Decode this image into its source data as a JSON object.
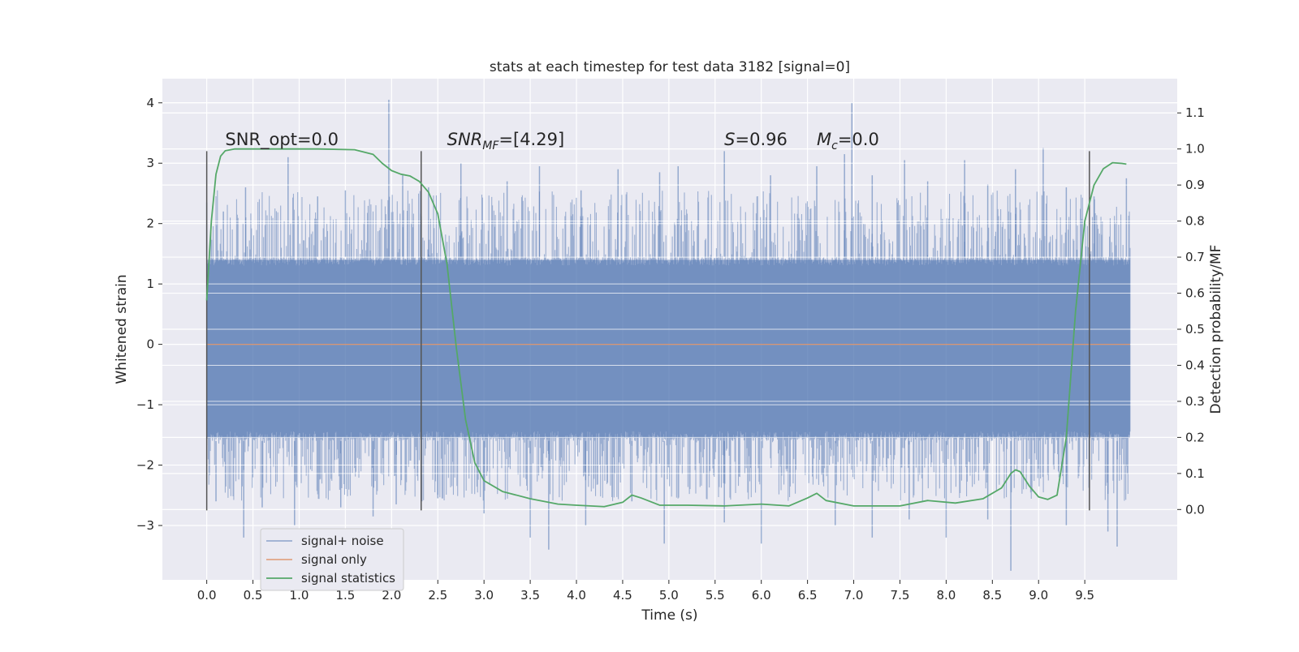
{
  "chart_data": {
    "type": "line",
    "title": "stats at each timestep for test data 3182 [signal=0]",
    "xlabel": "Time (s)",
    "ylabel": "Whitened strain",
    "y2label": "Detection probability/MF",
    "xlim": [
      -0.48,
      10.5
    ],
    "ylim": [
      -3.9,
      4.4
    ],
    "y2lim": [
      -0.195,
      1.195
    ],
    "x_ticks": [
      0.0,
      0.5,
      1.0,
      1.5,
      2.0,
      2.5,
      3.0,
      3.5,
      4.0,
      4.5,
      5.0,
      5.5,
      6.0,
      6.5,
      7.0,
      7.5,
      8.0,
      8.5,
      9.0,
      9.5
    ],
    "x_tick_labels": [
      "0.0",
      "0.5",
      "1.0",
      "1.5",
      "2.0",
      "2.5",
      "3.0",
      "3.5",
      "4.0",
      "4.5",
      "5.0",
      "5.5",
      "6.0",
      "6.5",
      "7.0",
      "7.5",
      "8.0",
      "8.5",
      "9.0",
      "9.5"
    ],
    "y_ticks": [
      -3,
      -2,
      -1,
      0,
      1,
      2,
      3,
      4
    ],
    "y_tick_labels": [
      "−3",
      "−2",
      "−1",
      "0",
      "1",
      "2",
      "3",
      "4"
    ],
    "y2_ticks": [
      0.0,
      0.1,
      0.2,
      0.3,
      0.4,
      0.5,
      0.6,
      0.7,
      0.8,
      0.9,
      1.0,
      1.1
    ],
    "y2_tick_labels": [
      "0.0",
      "0.1",
      "0.2",
      "0.3",
      "0.4",
      "0.5",
      "0.6",
      "0.7",
      "0.8",
      "0.9",
      "1.0",
      "1.1"
    ],
    "grid": true,
    "legend_position": "lower-left",
    "colors": {
      "background": "#eaeaf2",
      "grid": "#ffffff",
      "signal_noise": "#4c72b0",
      "signal_only": "#dd8452",
      "signal_statistics": "#55a868",
      "vlines": "#555555"
    },
    "series": [
      {
        "name": "signal+ noise",
        "type": "noise-band",
        "x_range": [
          0.0,
          9.99
        ],
        "typical_range": [
          -1.6,
          1.45
        ],
        "peaks": [
          [
            0.0,
            2.35
          ],
          [
            0.18,
            2.2
          ],
          [
            0.42,
            2.6
          ],
          [
            0.88,
            3.1
          ],
          [
            1.2,
            2.45
          ],
          [
            1.5,
            2.55
          ],
          [
            1.97,
            4.05
          ],
          [
            2.12,
            2.8
          ],
          [
            2.4,
            2.6
          ],
          [
            2.75,
            3.0
          ],
          [
            3.25,
            2.7
          ],
          [
            3.6,
            2.95
          ],
          [
            4.05,
            2.55
          ],
          [
            4.45,
            2.9
          ],
          [
            4.9,
            2.85
          ],
          [
            5.1,
            2.95
          ],
          [
            5.6,
            3.2
          ],
          [
            6.1,
            2.8
          ],
          [
            6.6,
            2.95
          ],
          [
            6.9,
            3.15
          ],
          [
            6.98,
            4.0
          ],
          [
            7.2,
            2.8
          ],
          [
            7.55,
            3.05
          ],
          [
            7.8,
            2.7
          ],
          [
            8.2,
            3.05
          ],
          [
            8.45,
            2.65
          ],
          [
            8.75,
            2.9
          ],
          [
            9.05,
            3.25
          ],
          [
            9.3,
            2.6
          ],
          [
            9.6,
            2.45
          ],
          [
            9.95,
            2.75
          ]
        ],
        "troughs": [
          [
            0.1,
            -2.6
          ],
          [
            0.4,
            -3.2
          ],
          [
            0.6,
            -2.7
          ],
          [
            0.95,
            -3.0
          ],
          [
            1.45,
            -2.7
          ],
          [
            1.8,
            -2.85
          ],
          [
            2.05,
            -2.65
          ],
          [
            2.5,
            -2.55
          ],
          [
            3.0,
            -2.8
          ],
          [
            3.5,
            -3.2
          ],
          [
            3.7,
            -3.4
          ],
          [
            4.1,
            -3.0
          ],
          [
            4.6,
            -2.6
          ],
          [
            4.95,
            -3.3
          ],
          [
            5.6,
            -2.95
          ],
          [
            6.0,
            -3.3
          ],
          [
            6.8,
            -3.0
          ],
          [
            7.2,
            -3.2
          ],
          [
            7.6,
            -2.9
          ],
          [
            8.0,
            -3.2
          ],
          [
            8.45,
            -2.9
          ],
          [
            8.7,
            -3.75
          ],
          [
            9.3,
            -3.0
          ],
          [
            9.75,
            -3.1
          ],
          [
            9.85,
            -3.35
          ]
        ]
      },
      {
        "name": "signal only",
        "type": "line",
        "x": [
          0.0,
          9.99
        ],
        "y": [
          0.0,
          0.0
        ]
      },
      {
        "name": "signal statistics",
        "type": "line",
        "axis": "right",
        "x": [
          0.0,
          0.05,
          0.1,
          0.15,
          0.2,
          0.3,
          0.5,
          0.8,
          1.2,
          1.6,
          1.8,
          1.9,
          2.0,
          2.1,
          2.2,
          2.3,
          2.4,
          2.5,
          2.6,
          2.7,
          2.8,
          2.9,
          3.0,
          3.2,
          3.5,
          3.8,
          4.0,
          4.3,
          4.5,
          4.6,
          4.7,
          4.9,
          5.2,
          5.6,
          6.0,
          6.3,
          6.5,
          6.6,
          6.7,
          7.0,
          7.5,
          7.8,
          8.1,
          8.4,
          8.6,
          8.7,
          8.75,
          8.8,
          8.9,
          9.0,
          9.1,
          9.2,
          9.3,
          9.4,
          9.5,
          9.6,
          9.7,
          9.8,
          9.9,
          9.95
        ],
        "y": [
          0.58,
          0.8,
          0.93,
          0.98,
          0.995,
          1.0,
          1.0,
          1.0,
          1.0,
          0.998,
          0.985,
          0.96,
          0.94,
          0.93,
          0.925,
          0.91,
          0.88,
          0.82,
          0.68,
          0.45,
          0.25,
          0.13,
          0.08,
          0.05,
          0.03,
          0.015,
          0.012,
          0.008,
          0.02,
          0.04,
          0.032,
          0.012,
          0.012,
          0.01,
          0.015,
          0.01,
          0.032,
          0.045,
          0.025,
          0.01,
          0.01,
          0.025,
          0.018,
          0.03,
          0.06,
          0.1,
          0.11,
          0.105,
          0.065,
          0.035,
          0.028,
          0.04,
          0.2,
          0.55,
          0.8,
          0.9,
          0.945,
          0.962,
          0.96,
          0.958
        ]
      }
    ],
    "vlines": [
      {
        "x": 0.0,
        "ymin": -2.75,
        "ymax": 3.2
      },
      {
        "x": 2.32,
        "ymin": -2.75,
        "ymax": 3.2
      },
      {
        "x": 9.55,
        "ymin": -2.75,
        "ymax": 3.2
      }
    ],
    "annotations": [
      {
        "text": "SNR_opt=0.0",
        "x": 0.2,
        "y": 3.3
      },
      {
        "text": "SNR",
        "sub": "MF",
        "suffix": "=[4.29]",
        "italic": true,
        "x": 2.6,
        "y": 3.3
      },
      {
        "text": "S",
        "sub": "",
        "suffix": "=0.96",
        "italic": true,
        "x": 5.6,
        "y": 3.3
      },
      {
        "text": "M",
        "sub": "c",
        "suffix": "=0.0",
        "italic": true,
        "x": 6.6,
        "y": 3.3
      }
    ]
  }
}
